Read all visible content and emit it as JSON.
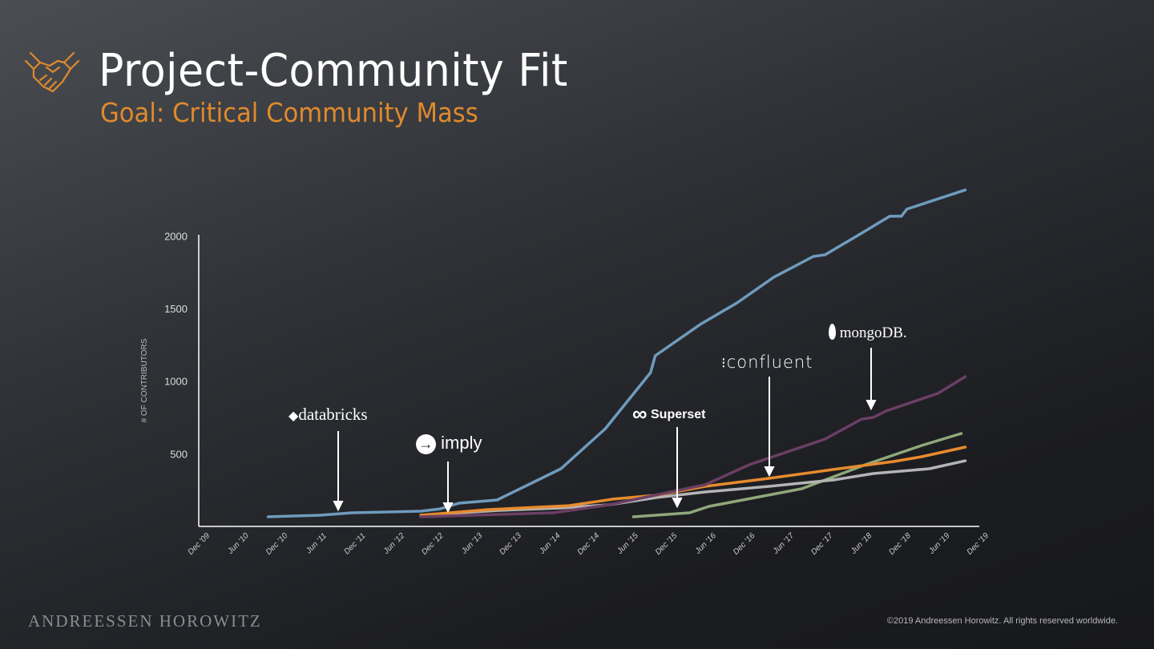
{
  "header": {
    "title": "Project-Community Fit",
    "subtitle": "Goal: Critical Community Mass"
  },
  "footer": {
    "brand": "ANDREESSEN HOROWITZ",
    "copyright": "©2019 Andreessen Horowitz. All rights reserved worldwide."
  },
  "colors": {
    "accent": "#e08a2c"
  },
  "chart_data": {
    "type": "line",
    "title": "",
    "xlabel": "",
    "ylabel": "# OF CONTRIBUTORS",
    "ylim": [
      0,
      2300
    ],
    "yticks": [
      500,
      1000,
      1500,
      2000
    ],
    "yticklabels": [
      "500",
      "1000",
      "1500",
      "2000"
    ],
    "xlim": [
      2009.92,
      2019.92
    ],
    "xticklabels": [
      "Dec '09",
      "Jun '10",
      "Dec '10",
      "Jun '11",
      "Dec '11",
      "Jun '12",
      "Dec '12",
      "Jun '13",
      "Dec '13",
      "Jun '14",
      "Dec '14",
      "Jun '15",
      "Dec '15",
      "Jun '16",
      "Dec '16",
      "Jun '17",
      "Dec '17",
      "Jun '18",
      "Dec '18",
      "Jun '19",
      "Dec '19"
    ],
    "series": [
      {
        "name": "databricks",
        "color": "#6f9bbd",
        "x": [
          2010.79,
          2011.46,
          2011.87,
          2012.75,
          2013.0,
          2013.24,
          2013.73,
          2014.55,
          2015.12,
          2015.7,
          2015.76,
          2016.35,
          2016.81,
          2017.28,
          2017.79,
          2017.94,
          2018.41,
          2018.77,
          2018.92,
          2018.99,
          2019.74
        ],
        "y": [
          66,
          77,
          94,
          105,
          121,
          160,
          182,
          397,
          673,
          1059,
          1175,
          1395,
          1539,
          1715,
          1859,
          1870,
          2019,
          2135,
          2135,
          2184,
          2316
        ]
      },
      {
        "name": "mongoDB",
        "color": "#6b3f63",
        "x": [
          2012.75,
          2014.45,
          2015.17,
          2016.4,
          2016.97,
          2017.94,
          2018.41,
          2018.56,
          2018.72,
          2019.39,
          2019.74
        ],
        "y": [
          66,
          94,
          149,
          287,
          425,
          601,
          739,
          750,
          794,
          916,
          1031
        ]
      },
      {
        "name": "confluent",
        "color": "#e88b2e",
        "x": [
          2012.75,
          2013.62,
          2014.65,
          2015.22,
          2015.78,
          2016.4,
          2017.22,
          2018.05,
          2018.82,
          2019.18,
          2019.74
        ],
        "y": [
          77,
          116,
          143,
          188,
          215,
          276,
          331,
          392,
          447,
          480,
          546
        ]
      },
      {
        "name": "imply",
        "color": "#b4b4b4",
        "x": [
          2012.75,
          2013.73,
          2014.55,
          2015.17,
          2015.78,
          2016.4,
          2017.22,
          2018.05,
          2018.56,
          2019.28,
          2019.74
        ],
        "y": [
          77,
          110,
          127,
          149,
          199,
          237,
          276,
          320,
          364,
          397,
          452
        ]
      },
      {
        "name": "Superset",
        "color": "#8fa87a",
        "x": [
          2015.48,
          2016.2,
          2016.45,
          2017.64,
          2018.05,
          2018.46,
          2019.18,
          2019.69
        ],
        "y": [
          66,
          94,
          138,
          259,
          342,
          425,
          557,
          640
        ]
      }
    ],
    "annotations": [
      "databricks",
      "imply",
      "Superset",
      "confluent",
      "mongoDB."
    ]
  }
}
